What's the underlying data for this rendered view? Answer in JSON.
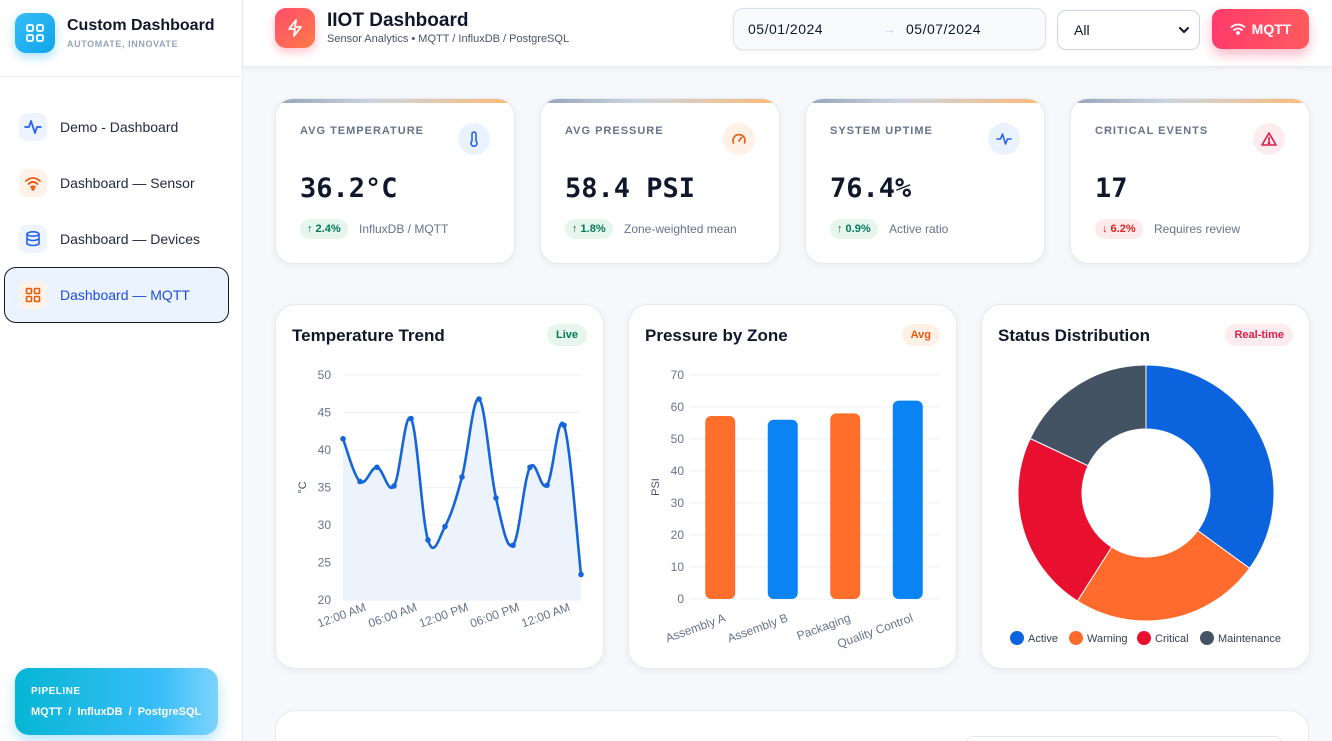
{
  "sidebar": {
    "brand_title": "Custom Dashboard",
    "brand_subtitle": "AUTOMATE, INNOVATE",
    "items": [
      {
        "label": "Demo - Dashboard",
        "icon": "activity-icon"
      },
      {
        "label": "Dashboard — Sensor",
        "icon": "wifi-icon"
      },
      {
        "label": "Dashboard — Devices",
        "icon": "database-icon"
      },
      {
        "label": "Dashboard — MQTT",
        "icon": "grid-icon",
        "active": true
      }
    ],
    "pipeline_title": "PIPELINE",
    "pipeline_text": "MQTT / InfluxDB / PostgreSQL"
  },
  "header": {
    "title": "IIOT Dashboard",
    "subtitle": "Sensor Analytics • MQTT / InfluxDB / PostgreSQL",
    "date_from": "05/01/2024",
    "date_arrow": "→",
    "date_to": "05/07/2024",
    "filter_value": "All",
    "mqtt_label": "MQTT"
  },
  "kpis": [
    {
      "label": "AVG TEMPERATURE",
      "value": "36.2°C",
      "change": "↑ 2.4%",
      "direction": "up",
      "note": "InfluxDB / MQTT",
      "icon": "thermometer-icon",
      "icon_color": "#2563eb",
      "icon_bg": "#eaf2ff"
    },
    {
      "label": "AVG PRESSURE",
      "value": "58.4 PSI",
      "change": "↑ 1.8%",
      "direction": "up",
      "note": "Zone-weighted mean",
      "icon": "gauge-icon",
      "icon_color": "#ea580c",
      "icon_bg": "#fff1e6"
    },
    {
      "label": "SYSTEM UPTIME",
      "value": "76.4%",
      "change": "↑ 0.9%",
      "direction": "up",
      "note": "Active ratio",
      "icon": "activity-icon",
      "icon_color": "#2563eb",
      "icon_bg": "#eaf2ff"
    },
    {
      "label": "CRITICAL EVENTS",
      "value": "17",
      "change": "↓ 6.2%",
      "direction": "down",
      "note": "Requires review",
      "icon": "alert-triangle-icon",
      "icon_color": "#e11d48",
      "icon_bg": "#fdecef"
    }
  ],
  "cards": {
    "temperature": {
      "title": "Temperature Trend",
      "tag": "Live"
    },
    "pressure": {
      "title": "Pressure by Zone",
      "tag": "Avg"
    },
    "status": {
      "title": "Status Distribution",
      "tag": "Real-time"
    }
  },
  "chart_data": [
    {
      "type": "line",
      "title": "Temperature Trend",
      "ylabel": "°C",
      "xlabel": "",
      "ylim": [
        20,
        50
      ],
      "yticks": [
        20,
        25,
        30,
        35,
        40,
        45,
        50
      ],
      "xtick_labels": [
        "12:00 AM",
        "06:00 AM",
        "12:00 PM",
        "06:00 PM",
        "12:00 AM"
      ],
      "series": [
        {
          "values": [
            41.5,
            35.8,
            37.7,
            35.2,
            44.2,
            28,
            29.8,
            36.4,
            46.8,
            33.6,
            27.3,
            37.7,
            35.3,
            43.3,
            23.4
          ],
          "color": "#1565d8"
        }
      ],
      "grid": true
    },
    {
      "type": "bar",
      "title": "Pressure by Zone",
      "ylabel": "PSI",
      "xlabel": "",
      "ylim": [
        0,
        70
      ],
      "yticks": [
        0,
        10,
        20,
        30,
        40,
        50,
        60,
        70
      ],
      "categories": [
        "Assembly A",
        "Assembly B",
        "Packaging",
        "Quality Control"
      ],
      "values": [
        57.2,
        56,
        58,
        62
      ],
      "colors": [
        "#ff6f2b",
        "#0a84f5",
        "#ff6f2b",
        "#0a84f5"
      ],
      "grid": true
    },
    {
      "type": "pie",
      "title": "Status Distribution",
      "labels": [
        "Active",
        "Warning",
        "Critical",
        "Maintenance"
      ],
      "values": [
        35,
        24,
        23,
        18
      ],
      "colors": [
        "#0b64de",
        "#ff6b2c",
        "#e8102e",
        "#435364"
      ],
      "legend": "bottom"
    }
  ]
}
